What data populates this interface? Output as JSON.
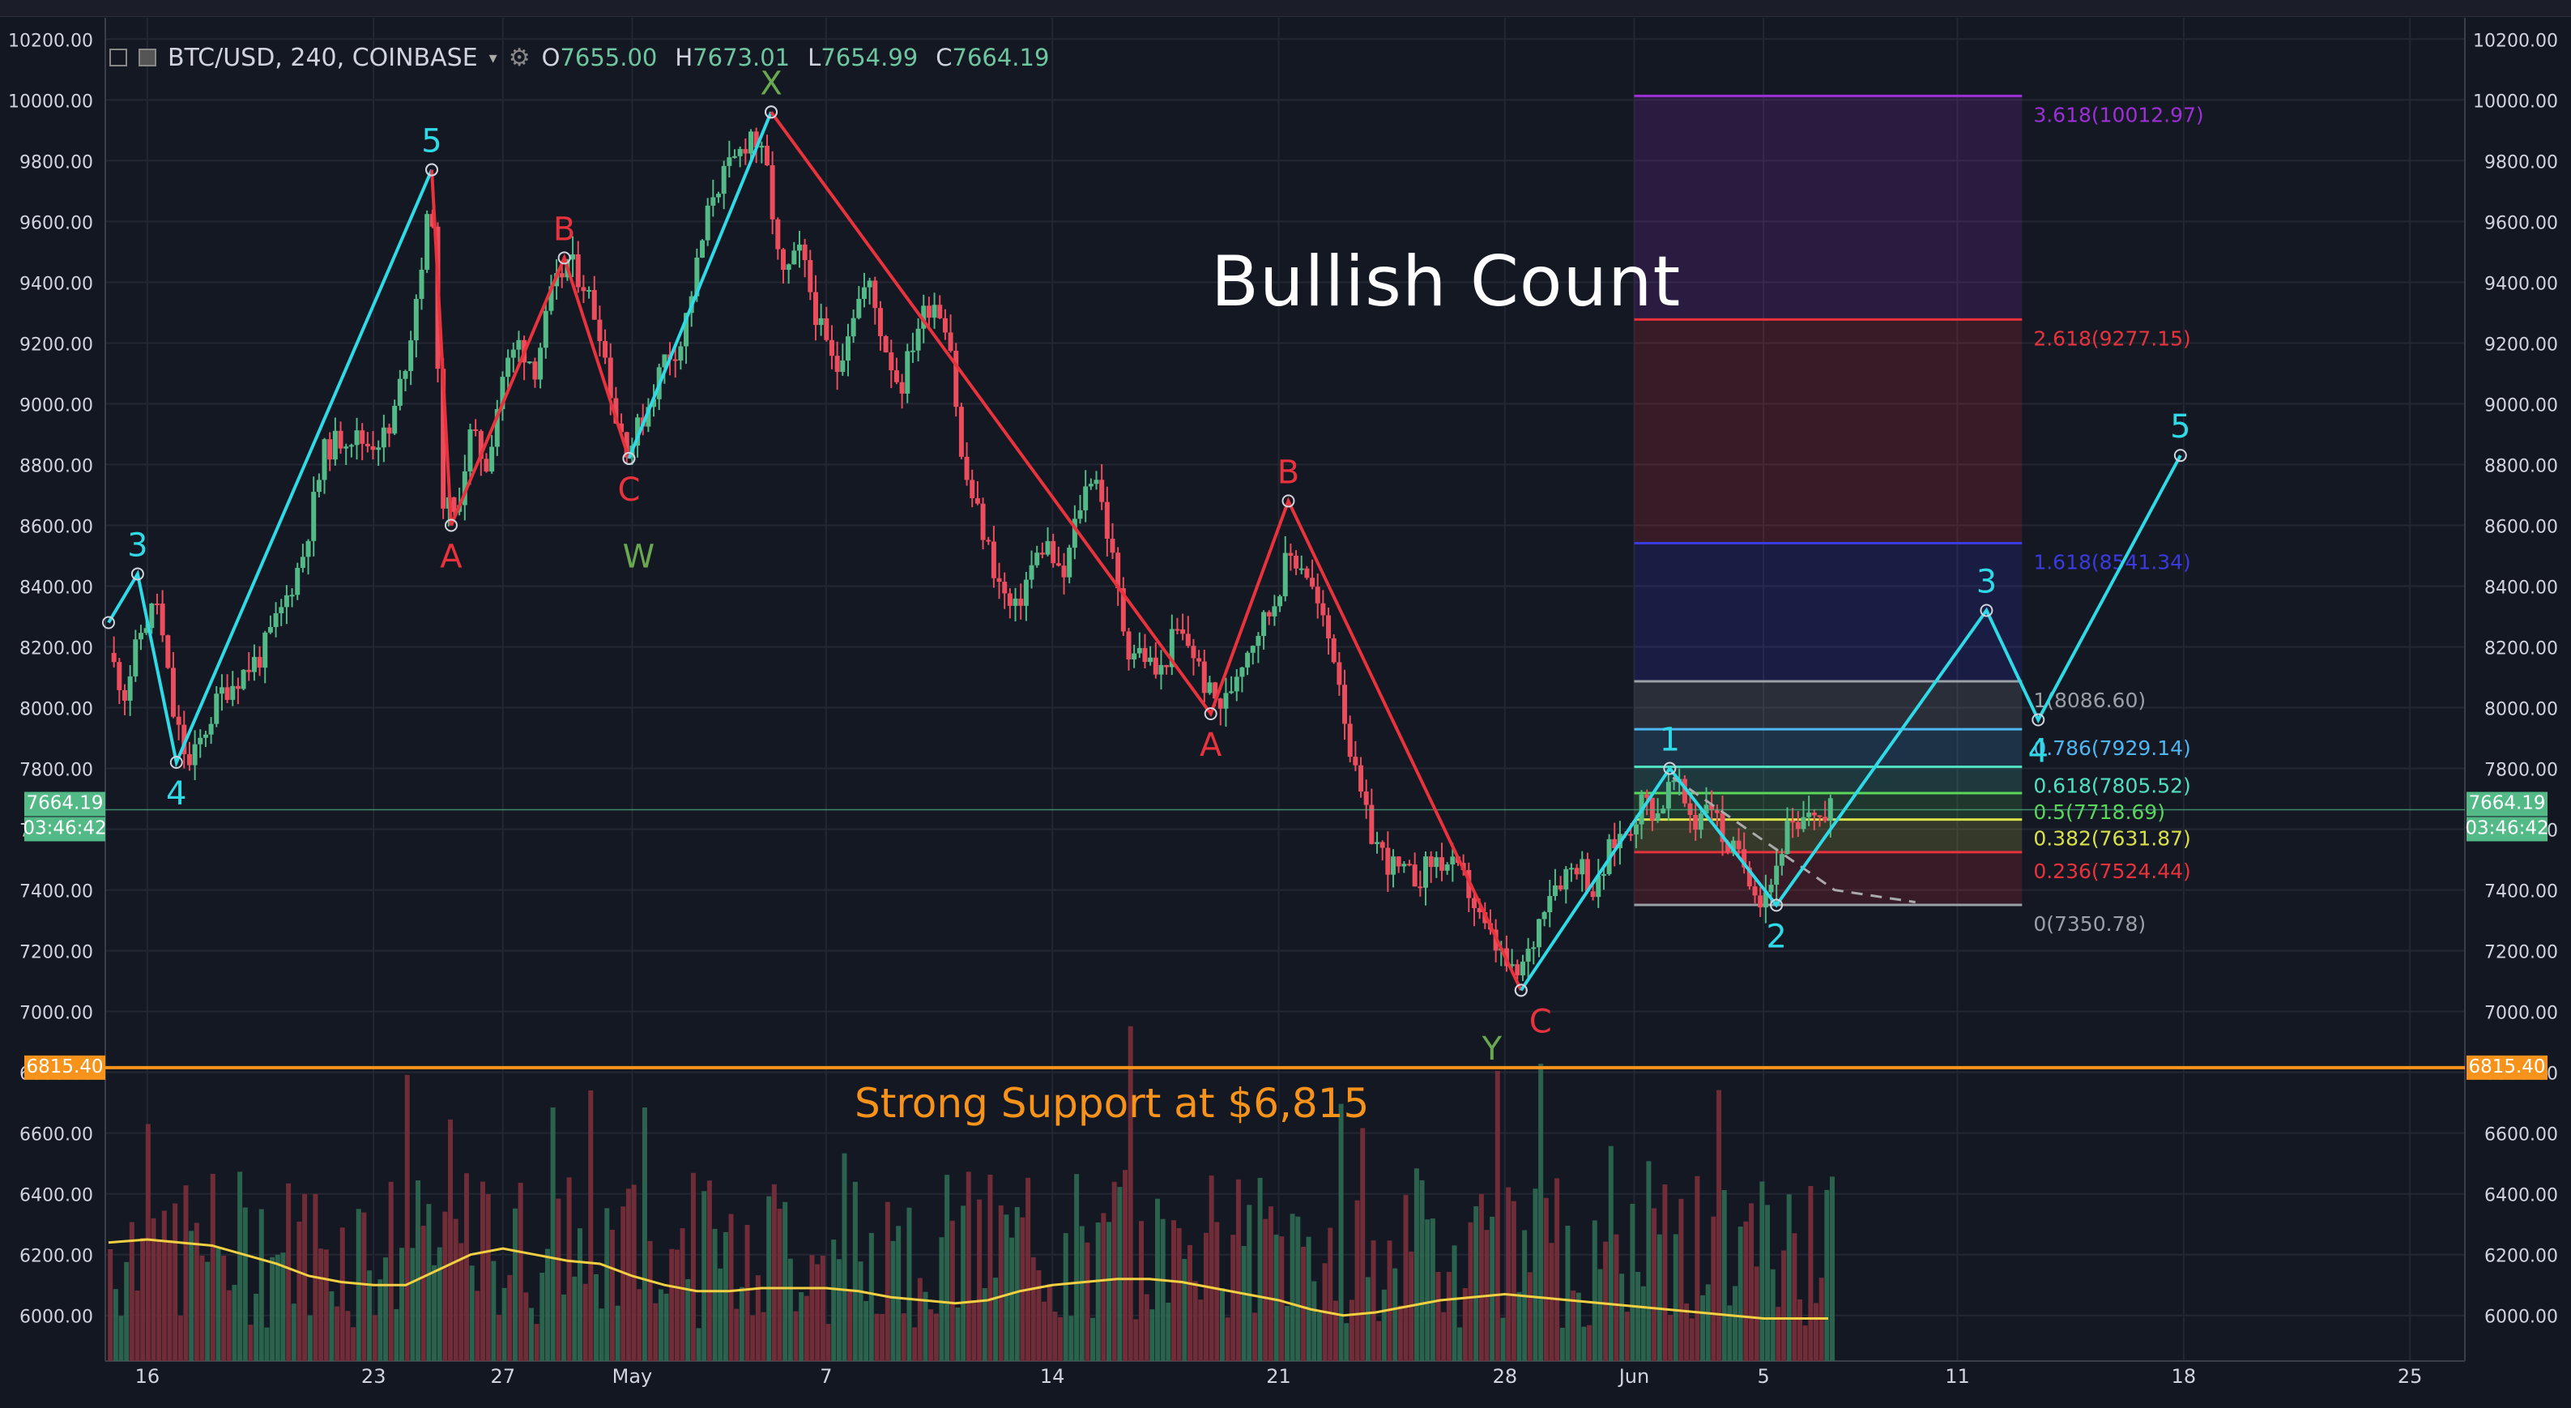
{
  "header": {
    "symbol": "BTC/USD, 240, COINBASE",
    "dropdown_icon": "caret-down-icon",
    "open_label": "O",
    "open": "7655.00",
    "high_label": "H",
    "high": "7673.01",
    "low_label": "L",
    "low": "7654.99",
    "close_label": "C",
    "close": "7664.19"
  },
  "annotations": {
    "title": "Bullish Count",
    "support_text": "Strong Support at $6,815"
  },
  "price_labels": {
    "last_price": "7664.19",
    "countdown": "03:46:42",
    "support_price": "6815.40"
  },
  "colors": {
    "background": "#131722",
    "up": "#53b987",
    "down": "#eb4d5c",
    "impulse": "#2fd9e6",
    "correction": "#e8323c",
    "wxy": "#6aa84f",
    "support": "#f7931a",
    "ma": "#f2d042"
  },
  "chart_data": {
    "type": "candlestick",
    "y_axis_ticks": [
      "10200.00",
      "10000.00",
      "9800.00",
      "9600.00",
      "9400.00",
      "9200.00",
      "9000.00",
      "8800.00",
      "8600.00",
      "8400.00",
      "8200.00",
      "8000.00",
      "7800.00",
      "7600.00",
      "7400.00",
      "7200.00",
      "7000.00",
      "6800.00",
      "6600.00",
      "6400.00",
      "6200.00",
      "6000.00"
    ],
    "ylim": [
      5850,
      10270
    ],
    "x_ticks": [
      {
        "label": "16",
        "day": 16
      },
      {
        "label": "23",
        "day": 23
      },
      {
        "label": "27",
        "day": 27
      },
      {
        "label": "May",
        "day": 31
      },
      {
        "label": "7",
        "day": 37
      },
      {
        "label": "14",
        "day": 44
      },
      {
        "label": "21",
        "day": 51
      },
      {
        "label": "28",
        "day": 58
      },
      {
        "label": "Jun",
        "day": 62
      },
      {
        "label": "5",
        "day": 66
      },
      {
        "label": "11",
        "day": 72
      },
      {
        "label": "18",
        "day": 79
      },
      {
        "label": "25",
        "day": 86
      }
    ],
    "xlim": [
      14.7,
      87.7
    ],
    "price_path": [
      [
        14.8,
        8180
      ],
      [
        15.3,
        8050
      ],
      [
        15.8,
        8250
      ],
      [
        16.3,
        8350
      ],
      [
        16.8,
        7980
      ],
      [
        17.3,
        7800
      ],
      [
        17.8,
        7930
      ],
      [
        18.3,
        8050
      ],
      [
        18.8,
        8100
      ],
      [
        19.5,
        8170
      ],
      [
        20.2,
        8330
      ],
      [
        20.8,
        8500
      ],
      [
        21.5,
        8850
      ],
      [
        22.2,
        8900
      ],
      [
        22.8,
        8870
      ],
      [
        23.5,
        8900
      ],
      [
        24.1,
        9200
      ],
      [
        24.8,
        9690
      ],
      [
        25.1,
        8700
      ],
      [
        25.5,
        8620
      ],
      [
        26.0,
        8900
      ],
      [
        26.5,
        8800
      ],
      [
        27.0,
        9100
      ],
      [
        27.5,
        9200
      ],
      [
        28.0,
        9120
      ],
      [
        28.5,
        9350
      ],
      [
        29.0,
        9470
      ],
      [
        29.5,
        9400
      ],
      [
        30.0,
        9250
      ],
      [
        30.5,
        8950
      ],
      [
        30.9,
        8850
      ],
      [
        31.5,
        9000
      ],
      [
        32.0,
        9150
      ],
      [
        32.5,
        9200
      ],
      [
        33.0,
        9450
      ],
      [
        33.5,
        9700
      ],
      [
        34.2,
        9800
      ],
      [
        34.7,
        9900
      ],
      [
        35.2,
        9750
      ],
      [
        35.6,
        9400
      ],
      [
        36.2,
        9500
      ],
      [
        36.8,
        9250
      ],
      [
        37.3,
        9100
      ],
      [
        37.8,
        9300
      ],
      [
        38.3,
        9400
      ],
      [
        38.8,
        9200
      ],
      [
        39.3,
        9050
      ],
      [
        39.8,
        9250
      ],
      [
        40.3,
        9350
      ],
      [
        40.8,
        9250
      ],
      [
        41.2,
        8800
      ],
      [
        41.8,
        8600
      ],
      [
        42.3,
        8420
      ],
      [
        42.8,
        8300
      ],
      [
        43.3,
        8450
      ],
      [
        43.8,
        8550
      ],
      [
        44.3,
        8400
      ],
      [
        44.8,
        8650
      ],
      [
        45.3,
        8800
      ],
      [
        45.8,
        8520
      ],
      [
        46.3,
        8200
      ],
      [
        46.8,
        8180
      ],
      [
        47.3,
        8100
      ],
      [
        47.8,
        8250
      ],
      [
        48.3,
        8200
      ],
      [
        48.8,
        8050
      ],
      [
        49.3,
        8000
      ],
      [
        49.8,
        8150
      ],
      [
        50.3,
        8250
      ],
      [
        50.8,
        8330
      ],
      [
        51.3,
        8500
      ],
      [
        51.8,
        8470
      ],
      [
        52.3,
        8300
      ],
      [
        52.8,
        8150
      ],
      [
        53.3,
        7800
      ],
      [
        53.8,
        7600
      ],
      [
        54.3,
        7500
      ],
      [
        54.8,
        7450
      ],
      [
        55.3,
        7440
      ],
      [
        55.8,
        7500
      ],
      [
        56.3,
        7480
      ],
      [
        56.8,
        7420
      ],
      [
        57.3,
        7280
      ],
      [
        57.8,
        7200
      ],
      [
        58.3,
        7100
      ],
      [
        58.8,
        7200
      ],
      [
        59.3,
        7400
      ],
      [
        59.8,
        7450
      ],
      [
        60.3,
        7500
      ],
      [
        60.8,
        7380
      ],
      [
        61.3,
        7550
      ],
      [
        61.8,
        7600
      ],
      [
        62.3,
        7700
      ],
      [
        62.7,
        7650
      ],
      [
        63.2,
        7760
      ],
      [
        63.5,
        7700
      ],
      [
        63.9,
        7620
      ],
      [
        64.3,
        7720
      ],
      [
        64.7,
        7580
      ],
      [
        65.1,
        7520
      ],
      [
        65.5,
        7470
      ],
      [
        65.9,
        7380
      ],
      [
        66.3,
        7440
      ],
      [
        66.7,
        7600
      ],
      [
        67.1,
        7580
      ],
      [
        67.5,
        7680
      ],
      [
        67.9,
        7620
      ],
      [
        68.1,
        7664
      ]
    ],
    "volume_ma_path": [
      [
        14.8,
        6240
      ],
      [
        16,
        6250
      ],
      [
        17,
        6240
      ],
      [
        18,
        6230
      ],
      [
        19,
        6200
      ],
      [
        20,
        6170
      ],
      [
        21,
        6130
      ],
      [
        22,
        6110
      ],
      [
        23,
        6100
      ],
      [
        24,
        6100
      ],
      [
        25,
        6150
      ],
      [
        26,
        6200
      ],
      [
        27,
        6220
      ],
      [
        28,
        6200
      ],
      [
        29,
        6180
      ],
      [
        30,
        6170
      ],
      [
        31,
        6130
      ],
      [
        32,
        6100
      ],
      [
        33,
        6080
      ],
      [
        34,
        6080
      ],
      [
        35,
        6090
      ],
      [
        36,
        6090
      ],
      [
        37,
        6090
      ],
      [
        38,
        6080
      ],
      [
        39,
        6060
      ],
      [
        40,
        6050
      ],
      [
        41,
        6040
      ],
      [
        42,
        6050
      ],
      [
        43,
        6080
      ],
      [
        44,
        6100
      ],
      [
        45,
        6110
      ],
      [
        46,
        6120
      ],
      [
        47,
        6120
      ],
      [
        48,
        6110
      ],
      [
        49,
        6090
      ],
      [
        50,
        6070
      ],
      [
        51,
        6050
      ],
      [
        52,
        6020
      ],
      [
        53,
        6000
      ],
      [
        54,
        6010
      ],
      [
        55,
        6030
      ],
      [
        56,
        6050
      ],
      [
        57,
        6060
      ],
      [
        58,
        6070
      ],
      [
        59,
        6060
      ],
      [
        60,
        6050
      ],
      [
        61,
        6040
      ],
      [
        62,
        6030
      ],
      [
        63,
        6020
      ],
      [
        64,
        6010
      ],
      [
        65,
        6000
      ],
      [
        66,
        5990
      ],
      [
        67,
        5990
      ],
      [
        68,
        5990
      ]
    ],
    "wave_lines": [
      {
        "name": "impulse",
        "color": "#2fd9e6",
        "points": [
          [
            14.8,
            8280
          ],
          [
            15.7,
            8440
          ],
          [
            16.9,
            7820
          ],
          [
            24.8,
            9770
          ]
        ]
      },
      {
        "name": "abc-1",
        "color": "#e8323c",
        "points": [
          [
            24.8,
            9770
          ],
          [
            25.4,
            8600
          ],
          [
            28.9,
            9480
          ],
          [
            30.9,
            8820
          ]
        ]
      },
      {
        "name": "x-leg",
        "color": "#2fd9e6",
        "points": [
          [
            30.9,
            8820
          ],
          [
            35.3,
            9960
          ]
        ]
      },
      {
        "name": "abc-2",
        "color": "#e8323c",
        "points": [
          [
            35.3,
            9960
          ],
          [
            48.9,
            7980
          ],
          [
            51.3,
            8680
          ],
          [
            58.5,
            7070
          ]
        ]
      },
      {
        "name": "projection",
        "color": "#2fd9e6",
        "points": [
          [
            58.5,
            7070
          ],
          [
            63.1,
            7800
          ],
          [
            66.4,
            7350
          ],
          [
            72.9,
            8320
          ],
          [
            74.5,
            7960
          ],
          [
            78.9,
            8830
          ]
        ]
      }
    ],
    "wave_labels": [
      {
        "text": "3",
        "x": 15.7,
        "y": 8440,
        "color": "#2fd9e6",
        "pos": "above"
      },
      {
        "text": "4",
        "x": 16.9,
        "y": 7820,
        "color": "#2fd9e6",
        "pos": "below"
      },
      {
        "text": "5",
        "x": 24.8,
        "y": 9770,
        "color": "#2fd9e6",
        "pos": "above"
      },
      {
        "text": "A",
        "x": 25.4,
        "y": 8600,
        "color": "#e8323c",
        "pos": "below"
      },
      {
        "text": "B",
        "x": 28.9,
        "y": 9480,
        "color": "#e8323c",
        "pos": "above"
      },
      {
        "text": "C",
        "x": 30.9,
        "y": 8820,
        "color": "#e8323c",
        "pos": "below"
      },
      {
        "text": "W",
        "x": 31.2,
        "y": 8600,
        "color": "#6aa84f",
        "pos": "below"
      },
      {
        "text": "X",
        "x": 35.3,
        "y": 9960,
        "color": "#6aa84f",
        "pos": "above"
      },
      {
        "text": "A",
        "x": 48.9,
        "y": 7980,
        "color": "#e8323c",
        "pos": "below"
      },
      {
        "text": "B",
        "x": 51.3,
        "y": 8680,
        "color": "#e8323c",
        "pos": "above"
      },
      {
        "text": "C",
        "x": 59.1,
        "y": 7070,
        "color": "#e8323c",
        "pos": "below"
      },
      {
        "text": "Y",
        "x": 57.6,
        "y": 6980,
        "color": "#6aa84f",
        "pos": "below"
      },
      {
        "text": "1",
        "x": 63.1,
        "y": 7800,
        "color": "#2fd9e6",
        "pos": "above"
      },
      {
        "text": "2",
        "x": 66.4,
        "y": 7350,
        "color": "#2fd9e6",
        "pos": "below"
      },
      {
        "text": "3",
        "x": 72.9,
        "y": 8320,
        "color": "#2fd9e6",
        "pos": "above"
      },
      {
        "text": "4",
        "x": 74.5,
        "y": 7960,
        "color": "#2fd9e6",
        "pos": "below"
      },
      {
        "text": "5",
        "x": 78.9,
        "y": 8830,
        "color": "#2fd9e6",
        "pos": "above"
      }
    ],
    "fib_start": 62.0,
    "fib_end": 74.0,
    "fib_levels": [
      {
        "label": "3.618(10012.97)",
        "value": 10012.97,
        "color": "#9c2fd6"
      },
      {
        "label": "2.618(9277.15)",
        "value": 9277.15,
        "color": "#e8323c"
      },
      {
        "label": "1.618(8541.34)",
        "value": 8541.34,
        "color": "#3a3adf"
      },
      {
        "label": "1(8086.60)",
        "value": 8086.6,
        "color": "#9aa0a6"
      },
      {
        "label": "0.786(7929.14)",
        "value": 7929.14,
        "color": "#4fb6f2"
      },
      {
        "label": "0.618(7805.52)",
        "value": 7805.52,
        "color": "#4fe0c2"
      },
      {
        "label": "0.5(7718.69)",
        "value": 7718.69,
        "color": "#5ad65a"
      },
      {
        "label": "0.382(7631.87)",
        "value": 7631.87,
        "color": "#d8e04a"
      },
      {
        "label": "0.236(7524.44)",
        "value": 7524.44,
        "color": "#e8323c"
      },
      {
        "label": "0(7350.78)",
        "value": 7350.78,
        "color": "#9aa0a6"
      }
    ],
    "support_level": 6815.4,
    "last_price": 7664.19,
    "trendline": [
      [
        63.2,
        7770
      ],
      [
        68.2,
        7400
      ],
      [
        70.7,
        7360
      ]
    ]
  }
}
